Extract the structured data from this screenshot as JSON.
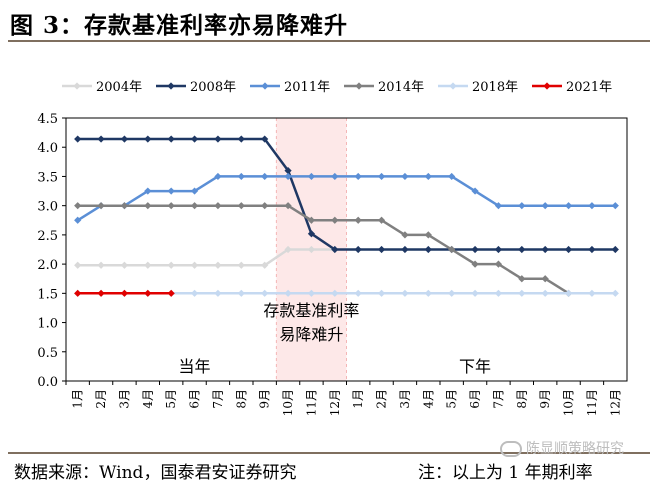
{
  "header": {
    "title": "图 3：存款基准利率亦易降难升"
  },
  "footer": {
    "source": "数据来源：Wind，国泰君安证券研究",
    "note": "注：以上为 1 年期利率",
    "watermark": "陈显顺策略研究"
  },
  "chart_data": {
    "type": "line",
    "title": "",
    "xlabel": "",
    "ylabel": "",
    "ylim": [
      0,
      4.5
    ],
    "yticks": [
      "0.0",
      "0.5",
      "1.0",
      "1.5",
      "2.0",
      "2.5",
      "3.0",
      "3.5",
      "4.0",
      "4.5"
    ],
    "categories": [
      "1月",
      "2月",
      "3月",
      "4月",
      "5月",
      "6月",
      "7月",
      "8月",
      "9月",
      "10月",
      "11月",
      "12月",
      "1月",
      "2月",
      "3月",
      "4月",
      "5月",
      "6月",
      "7月",
      "8月",
      "9月",
      "10月",
      "11月",
      "12月"
    ],
    "legend_position": "top",
    "highlight": {
      "from_category": 9,
      "to_category": 11,
      "label_line1": "存款基准利率",
      "label_line2": "易降难升",
      "color": "#fde8e8"
    },
    "period_labels": [
      {
        "text": "当年",
        "at_category": 5.5
      },
      {
        "text": "下年",
        "at_category": 17.5
      }
    ],
    "series": [
      {
        "name": "2004年",
        "color": "#d9d9d9",
        "values": [
          1.98,
          1.98,
          1.98,
          1.98,
          1.98,
          1.98,
          1.98,
          1.98,
          1.98,
          2.25,
          2.25,
          2.25,
          null,
          null,
          null,
          null,
          null,
          null,
          null,
          null,
          null,
          null,
          null,
          null
        ]
      },
      {
        "name": "2008年",
        "color": "#1f3864",
        "values": [
          4.14,
          4.14,
          4.14,
          4.14,
          4.14,
          4.14,
          4.14,
          4.14,
          4.14,
          3.6,
          2.52,
          2.25,
          2.25,
          2.25,
          2.25,
          2.25,
          2.25,
          2.25,
          2.25,
          2.25,
          2.25,
          2.25,
          2.25,
          2.25
        ]
      },
      {
        "name": "2011年",
        "color": "#5b8fd6",
        "values": [
          2.75,
          3.0,
          3.0,
          3.25,
          3.25,
          3.25,
          3.5,
          3.5,
          3.5,
          3.5,
          3.5,
          3.5,
          3.5,
          3.5,
          3.5,
          3.5,
          3.5,
          3.25,
          3.0,
          3.0,
          3.0,
          3.0,
          3.0,
          3.0
        ]
      },
      {
        "name": "2014年",
        "color": "#808080",
        "values": [
          3.0,
          3.0,
          3.0,
          3.0,
          3.0,
          3.0,
          3.0,
          3.0,
          3.0,
          3.0,
          2.75,
          2.75,
          2.75,
          2.75,
          2.5,
          2.5,
          2.25,
          2.0,
          2.0,
          1.75,
          1.75,
          1.5,
          null,
          null
        ]
      },
      {
        "name": "2018年",
        "color": "#c5d9f1",
        "values": [
          1.5,
          1.5,
          1.5,
          1.5,
          1.5,
          1.5,
          1.5,
          1.5,
          1.5,
          1.5,
          1.5,
          1.5,
          1.5,
          1.5,
          1.5,
          1.5,
          1.5,
          1.5,
          1.5,
          1.5,
          1.5,
          1.5,
          1.5,
          1.5
        ]
      },
      {
        "name": "2021年",
        "color": "#e00000",
        "values": [
          1.5,
          1.5,
          1.5,
          1.5,
          1.5,
          null,
          null,
          null,
          null,
          null,
          null,
          null,
          null,
          null,
          null,
          null,
          null,
          null,
          null,
          null,
          null,
          null,
          null,
          null
        ]
      }
    ]
  }
}
